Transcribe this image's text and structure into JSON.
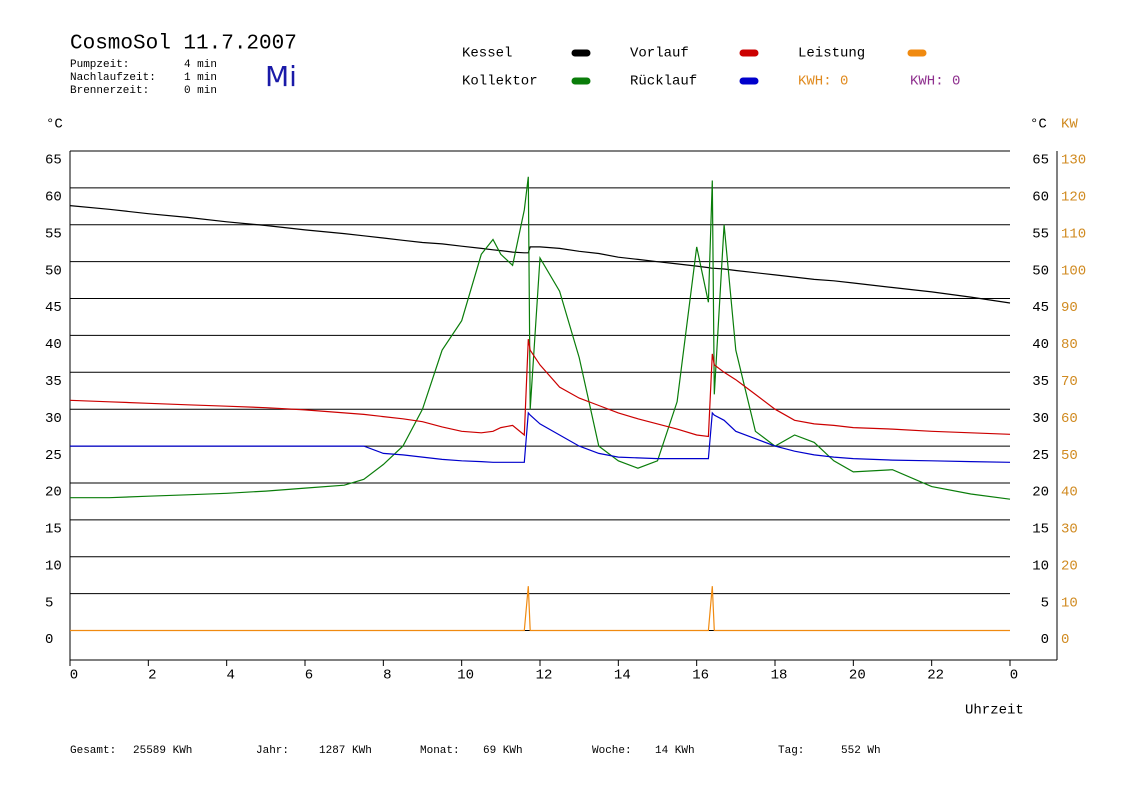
{
  "chart_data": {
    "type": "line",
    "title": "CosmoSol 11.7.2007",
    "day": "Mi",
    "info": [
      {
        "label": "Pumpzeit:",
        "value": "4 min"
      },
      {
        "label": "Nachlaufzeit:",
        "value": "1 min"
      },
      {
        "label": "Brennerzeit:",
        "value": "0 min"
      }
    ],
    "kwh_labels": [
      {
        "text": "KWH: 0",
        "color": "#e08a1e"
      },
      {
        "text": "KWH: 0",
        "color": "#8e2f8e"
      }
    ],
    "y_label": "°C",
    "y2_label_c": "°C",
    "y2_label": "KW",
    "x_label": "Uhrzeit",
    "x": [
      0,
      1,
      2,
      3,
      4,
      5,
      6,
      7,
      7.5,
      8,
      8.5,
      9,
      9.5,
      10,
      10.5,
      10.8,
      11,
      11.3,
      11.6,
      11.7,
      11.75,
      12,
      12.5,
      13,
      13.5,
      14,
      14.5,
      15,
      15.5,
      16,
      16.3,
      16.4,
      16.45,
      16.7,
      17,
      17.5,
      18,
      18.5,
      19,
      19.5,
      20,
      21,
      22,
      23,
      24
    ],
    "series": [
      {
        "name": "Kessel",
        "color": "#000000",
        "values": [
          57.6,
          57.1,
          56.5,
          56,
          55.4,
          54.9,
          54.3,
          53.8,
          53.5,
          53.2,
          52.9,
          52.6,
          52.4,
          52.1,
          51.8,
          51.6,
          51.5,
          51.3,
          51.2,
          51.2,
          52,
          52,
          51.8,
          51.4,
          51.1,
          50.6,
          50.3,
          50,
          49.7,
          49.4,
          49.2,
          49.1,
          49.1,
          49,
          48.8,
          48.5,
          48.2,
          47.9,
          47.6,
          47.4,
          47.1,
          46.5,
          45.9,
          45.2,
          44.4
        ]
      },
      {
        "name": "Kollektor",
        "color": "#0a7d0a",
        "values": [
          18,
          18,
          18.2,
          18.4,
          18.6,
          18.9,
          19.3,
          19.7,
          20.5,
          22.5,
          25,
          30,
          38,
          42,
          51,
          53,
          51,
          49.5,
          57,
          61.5,
          30,
          50.5,
          46,
          37,
          25,
          23,
          22,
          23,
          31,
          52,
          44.5,
          61,
          32,
          55,
          38,
          27,
          25,
          26.5,
          25.5,
          23,
          21.5,
          21.8,
          19.5,
          18.5,
          17.8
        ]
      },
      {
        "name": "Vorlauf",
        "color": "#cc0000",
        "values": [
          31.2,
          31,
          30.8,
          30.6,
          30.4,
          30.2,
          29.9,
          29.5,
          29.3,
          29,
          28.7,
          28.3,
          27.6,
          27,
          26.8,
          27,
          27.5,
          27.8,
          26.5,
          39.5,
          38,
          36,
          33,
          31.5,
          30.5,
          29.5,
          28.7,
          28,
          27.3,
          26.5,
          26.3,
          37.5,
          36,
          35,
          34,
          32,
          30,
          28.5,
          28,
          27.8,
          27.5,
          27.3,
          27,
          26.8,
          26.6
        ]
      },
      {
        "name": "Rücklauf",
        "color": "#0000cc",
        "values": [
          25,
          25,
          25,
          25,
          25,
          25,
          25,
          25,
          25,
          24,
          23.8,
          23.5,
          23.2,
          23,
          22.9,
          22.8,
          22.8,
          22.8,
          22.8,
          29.5,
          29.2,
          28,
          26.5,
          25,
          24,
          23.5,
          23.4,
          23.3,
          23.3,
          23.3,
          23.3,
          29.5,
          29.2,
          28.5,
          27,
          26,
          25,
          24.3,
          23.8,
          23.5,
          23.3,
          23.1,
          23,
          22.9,
          22.8
        ]
      },
      {
        "name": "Leistung",
        "color": "#f08a10",
        "axis": "y2",
        "values": [
          0,
          0,
          0,
          0,
          0,
          0,
          0,
          0,
          0,
          0,
          0,
          0,
          0,
          0,
          0,
          0,
          0,
          0,
          0,
          12,
          0,
          0,
          0,
          0,
          0,
          0,
          0,
          0,
          0,
          0,
          0,
          12,
          0,
          0,
          0,
          0,
          0,
          0,
          0,
          0,
          0,
          0,
          0,
          0,
          0
        ]
      }
    ],
    "xlim": [
      0,
      25.2
    ],
    "xticks": [
      0,
      2,
      4,
      6,
      8,
      10,
      12,
      14,
      16,
      18,
      20,
      22,
      {
        "value": 24,
        "label": "0"
      }
    ],
    "ylim": [
      -4,
      65
    ],
    "yticks": [
      0,
      5,
      10,
      15,
      20,
      25,
      30,
      35,
      40,
      45,
      50,
      55,
      60,
      65
    ],
    "y2lim": [
      -8,
      130
    ],
    "y2ticks": [
      0,
      10,
      20,
      30,
      40,
      50,
      60,
      70,
      80,
      90,
      100,
      110,
      120,
      130
    ],
    "grid": true,
    "totals": [
      {
        "label": "Gesamt:",
        "value": "25589 KWh"
      },
      {
        "label": "Jahr:",
        "value": "1287 KWh"
      },
      {
        "label": "Monat:",
        "value": "69 KWh"
      },
      {
        "label": "Woche:",
        "value": "14 KWh"
      },
      {
        "label": "Tag:",
        "value": "552 Wh"
      }
    ]
  }
}
